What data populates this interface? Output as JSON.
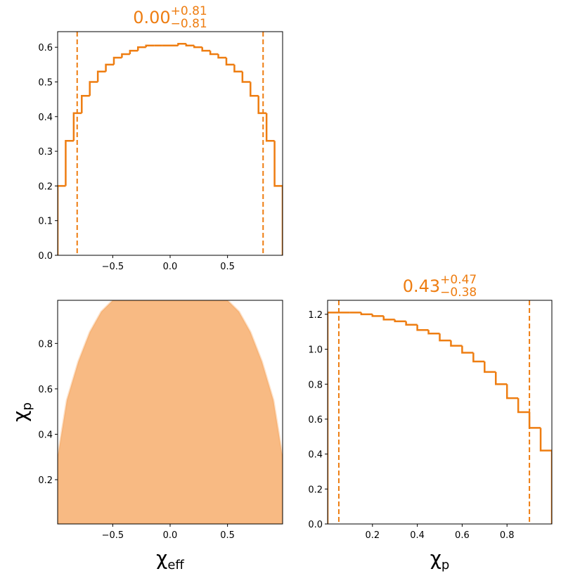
{
  "chart_data": [
    {
      "type": "histogram",
      "color": "#ee7d11",
      "title": {
        "value": "0.00",
        "upper": "+0.81",
        "lower": "−0.81"
      },
      "bins": [
        -0.98,
        -0.91,
        -0.84,
        -0.77,
        -0.7,
        -0.63,
        -0.56,
        -0.49,
        -0.42,
        -0.35,
        -0.28,
        -0.21,
        -0.14,
        -0.07,
        0,
        0.07,
        0.14,
        0.21,
        0.28,
        0.35,
        0.42,
        0.49,
        0.56,
        0.63,
        0.7,
        0.77,
        0.84,
        0.91,
        0.98
      ],
      "values": [
        0.2,
        0.33,
        0.41,
        0.46,
        0.5,
        0.53,
        0.55,
        0.57,
        0.58,
        0.59,
        0.6,
        0.605,
        0.605,
        0.605,
        0.605,
        0.61,
        0.605,
        0.6,
        0.59,
        0.58,
        0.57,
        0.55,
        0.53,
        0.5,
        0.46,
        0.41,
        0.33,
        0.2
      ],
      "lines": [
        -0.81,
        0.81
      ],
      "xlim": [
        -0.98,
        0.98
      ],
      "ylim": [
        0,
        0.645
      ],
      "xticks": [
        {
          "value": -0.5,
          "label": "−0.5"
        },
        {
          "value": 0,
          "label": "0.0"
        },
        0.5
      ],
      "yticks": [
        {
          "value": 0,
          "label": "0.0"
        },
        0.1,
        0.2,
        0.3,
        0.4,
        0.5,
        0.6
      ]
    },
    {
      "type": "scatter",
      "color": "#f5a35a",
      "x": [
        -0.98,
        -0.98,
        -0.9,
        -0.8,
        -0.7,
        -0.6,
        -0.5,
        0.5,
        0.6,
        0.7,
        0.8,
        0.9,
        0.98,
        0.98
      ],
      "y": [
        0.005,
        0.3,
        0.55,
        0.72,
        0.85,
        0.94,
        0.99,
        0.99,
        0.94,
        0.85,
        0.72,
        0.55,
        0.3,
        0.005
      ],
      "xlim": [
        -0.98,
        0.98
      ],
      "ylim": [
        0.005,
        0.99
      ],
      "xticks": [
        {
          "value": -0.5,
          "label": "−0.5"
        },
        {
          "value": 0,
          "label": "0.0"
        },
        0.5
      ],
      "yticks": [
        0.2,
        0.4,
        0.6,
        0.8
      ],
      "xlabel": {
        "symbol": "χ",
        "subscript": "eff"
      },
      "ylabel": {
        "symbol": "χ",
        "subscript": "p"
      }
    },
    {
      "type": "histogram",
      "color": "#ee7d11",
      "title": {
        "value": "0.43",
        "upper": "+0.47",
        "lower": "−0.38"
      },
      "bins": [
        0,
        0.05,
        0.1,
        0.15,
        0.2,
        0.25,
        0.3,
        0.35,
        0.4,
        0.45,
        0.5,
        0.55,
        0.6,
        0.65,
        0.7,
        0.75,
        0.8,
        0.85,
        0.9,
        0.95,
        1.0
      ],
      "values": [
        1.21,
        1.21,
        1.21,
        1.2,
        1.19,
        1.17,
        1.16,
        1.14,
        1.11,
        1.09,
        1.05,
        1.02,
        0.98,
        0.93,
        0.87,
        0.8,
        0.72,
        0.64,
        0.55,
        0.42
      ],
      "lines": [
        0.05,
        0.9
      ],
      "xlim": [
        0,
        1.0
      ],
      "ylim": [
        0,
        1.28
      ],
      "xticks": [
        0.2,
        0.4,
        0.6,
        0.8
      ],
      "yticks": [
        {
          "value": 0,
          "label": "0.0"
        },
        0.2,
        0.4,
        0.6,
        0.8,
        {
          "value": 1,
          "label": "1.0"
        },
        1.2
      ],
      "xlabel": {
        "symbol": "χ",
        "subscript": "p"
      }
    }
  ]
}
